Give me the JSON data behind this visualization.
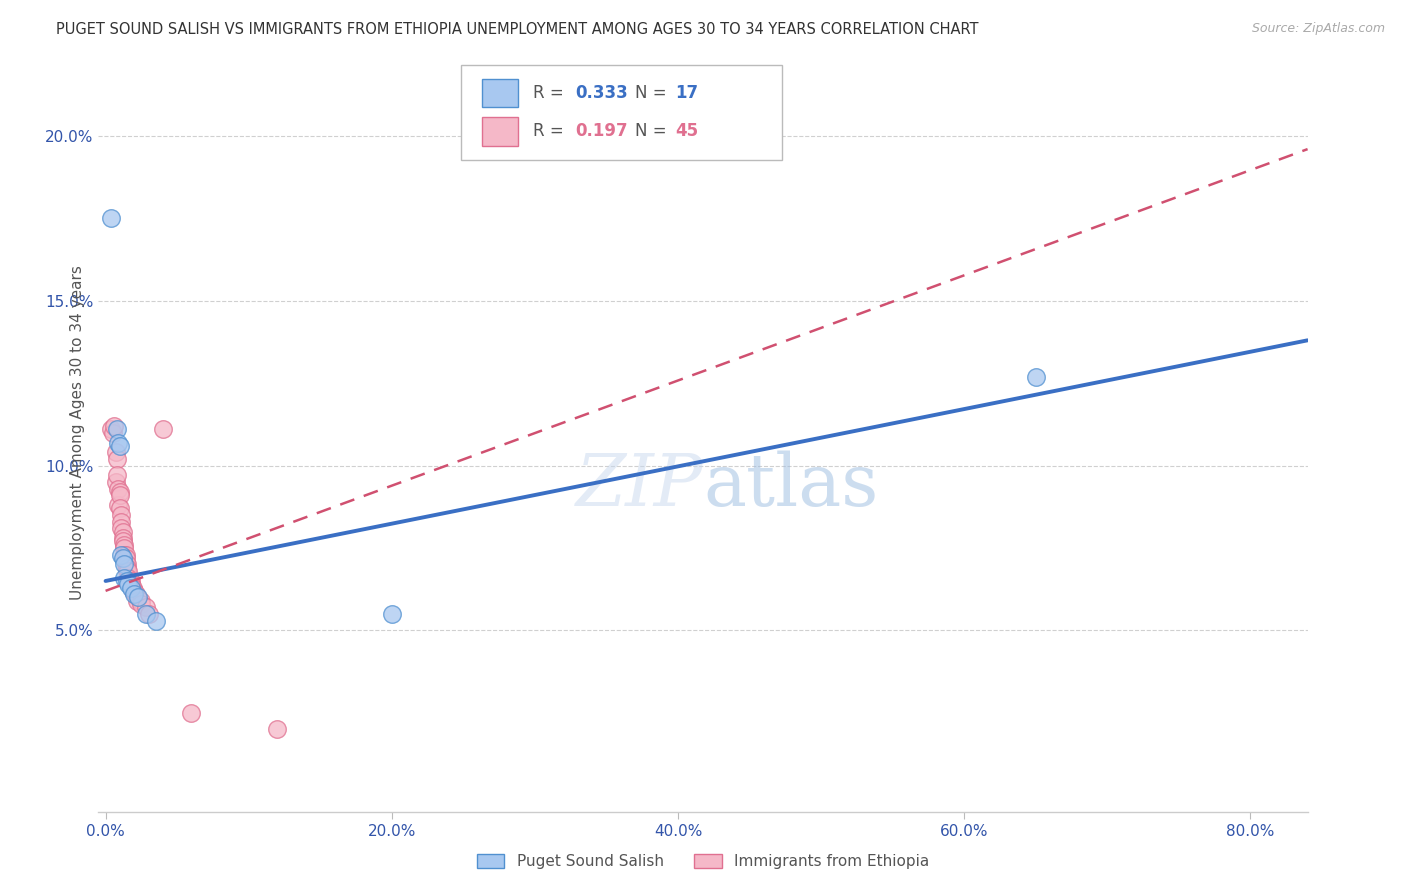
{
  "title": "PUGET SOUND SALISH VS IMMIGRANTS FROM ETHIOPIA UNEMPLOYMENT AMONG AGES 30 TO 34 YEARS CORRELATION CHART",
  "source": "Source: ZipAtlas.com",
  "ylabel": "Unemployment Among Ages 30 to 34 years",
  "xlabel_ticks": [
    "0.0%",
    "20.0%",
    "40.0%",
    "60.0%",
    "80.0%"
  ],
  "xlabel_vals": [
    0.0,
    0.2,
    0.4,
    0.6,
    0.8
  ],
  "ylabel_ticks": [
    "5.0%",
    "10.0%",
    "15.0%",
    "20.0%"
  ],
  "ylabel_vals": [
    0.05,
    0.1,
    0.15,
    0.2
  ],
  "ylim": [
    -0.005,
    0.225
  ],
  "xlim": [
    -0.005,
    0.84
  ],
  "legend_blue_r": "0.333",
  "legend_blue_n": "17",
  "legend_pink_r": "0.197",
  "legend_pink_n": "45",
  "blue_scatter": [
    [
      0.004,
      0.175
    ],
    [
      0.008,
      0.111
    ],
    [
      0.009,
      0.107
    ],
    [
      0.01,
      0.106
    ],
    [
      0.011,
      0.073
    ],
    [
      0.012,
      0.072
    ],
    [
      0.013,
      0.07
    ],
    [
      0.013,
      0.066
    ],
    [
      0.015,
      0.065
    ],
    [
      0.016,
      0.064
    ],
    [
      0.018,
      0.063
    ],
    [
      0.02,
      0.061
    ],
    [
      0.023,
      0.06
    ],
    [
      0.028,
      0.055
    ],
    [
      0.035,
      0.053
    ],
    [
      0.2,
      0.055
    ],
    [
      0.65,
      0.127
    ]
  ],
  "pink_scatter": [
    [
      0.004,
      0.111
    ],
    [
      0.005,
      0.11
    ],
    [
      0.006,
      0.112
    ],
    [
      0.007,
      0.104
    ],
    [
      0.007,
      0.095
    ],
    [
      0.008,
      0.102
    ],
    [
      0.008,
      0.097
    ],
    [
      0.009,
      0.093
    ],
    [
      0.009,
      0.088
    ],
    [
      0.01,
      0.092
    ],
    [
      0.01,
      0.091
    ],
    [
      0.01,
      0.087
    ],
    [
      0.011,
      0.085
    ],
    [
      0.011,
      0.083
    ],
    [
      0.011,
      0.081
    ],
    [
      0.012,
      0.08
    ],
    [
      0.012,
      0.078
    ],
    [
      0.012,
      0.077
    ],
    [
      0.013,
      0.076
    ],
    [
      0.013,
      0.075
    ],
    [
      0.013,
      0.073
    ],
    [
      0.014,
      0.073
    ],
    [
      0.014,
      0.072
    ],
    [
      0.014,
      0.07
    ],
    [
      0.015,
      0.07
    ],
    [
      0.015,
      0.069
    ],
    [
      0.015,
      0.068
    ],
    [
      0.016,
      0.068
    ],
    [
      0.016,
      0.066
    ],
    [
      0.017,
      0.065
    ],
    [
      0.018,
      0.065
    ],
    [
      0.018,
      0.064
    ],
    [
      0.019,
      0.063
    ],
    [
      0.019,
      0.062
    ],
    [
      0.02,
      0.062
    ],
    [
      0.021,
      0.061
    ],
    [
      0.022,
      0.06
    ],
    [
      0.022,
      0.059
    ],
    [
      0.025,
      0.059
    ],
    [
      0.025,
      0.058
    ],
    [
      0.028,
      0.057
    ],
    [
      0.03,
      0.055
    ],
    [
      0.04,
      0.111
    ],
    [
      0.06,
      0.025
    ],
    [
      0.12,
      0.02
    ]
  ],
  "blue_color": "#A8C8F0",
  "pink_color": "#F5B8C8",
  "blue_edge_color": "#5090D0",
  "pink_edge_color": "#E07090",
  "blue_line_color": "#3A6FC4",
  "pink_line_color": "#D05070",
  "title_color": "#333333",
  "axis_label_color": "#555555",
  "tick_color_blue": "#3355AA",
  "grid_color": "#D0D0D0",
  "background_color": "#FFFFFF"
}
